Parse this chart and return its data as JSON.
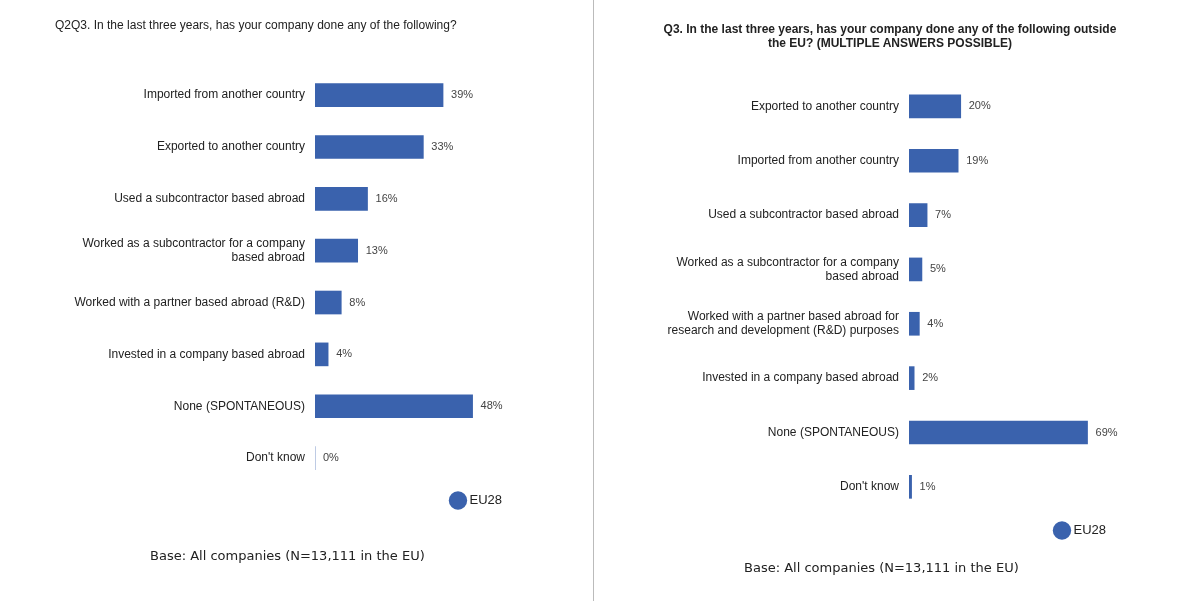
{
  "chart_data": [
    {
      "type": "bar",
      "orientation": "horizontal",
      "title": "Q2Q3. In the last three years, has your company done any of the following?",
      "categories": [
        "Imported from another country",
        "Exported to another country",
        "Used a subcontractor based abroad",
        "Worked as a subcontractor for a company based abroad",
        "Worked with a partner based abroad (R&D)",
        "Invested in a company based abroad",
        "None (SPONTANEOUS)",
        "Don't know"
      ],
      "series": [
        {
          "name": "EU28",
          "color": "#3a62ad",
          "values": [
            39,
            33,
            16,
            13,
            8,
            4,
            48,
            0
          ],
          "value_labels": [
            "39%",
            "33%",
            "16%",
            "13%",
            "8%",
            "4%",
            "48%",
            "0%"
          ]
        }
      ],
      "grid": false,
      "tick_labels": "y",
      "legend": "bottom right",
      "annotations": [
        "Base: All companies (N=13,111 in the EU)"
      ]
    },
    {
      "type": "bar",
      "orientation": "horizontal",
      "title": "Q3. In the last three years, has your company done any of the following outside the EU? (MULTIPLE ANSWERS POSSIBLE)",
      "categories": [
        "Exported to another country",
        "Imported from another country",
        "Used a subcontractor based abroad",
        "Worked as a subcontractor for a company based abroad",
        "Worked with a partner based abroad for research and development (R&D) purposes",
        "Invested in a company based abroad",
        "None (SPONTANEOUS)",
        "Don't know"
      ],
      "series": [
        {
          "name": "EU28",
          "color": "#3a62ad",
          "values": [
            20,
            19,
            7,
            5,
            4,
            2,
            69,
            1
          ],
          "value_labels": [
            "20%",
            "19%",
            "7%",
            "5%",
            "4%",
            "2%",
            "69%",
            "1%"
          ]
        }
      ],
      "grid": false,
      "tick_labels": "y",
      "legend": "bottom right",
      "annotations": [
        "Base: All companies (N=13,111 in the EU)"
      ]
    }
  ]
}
